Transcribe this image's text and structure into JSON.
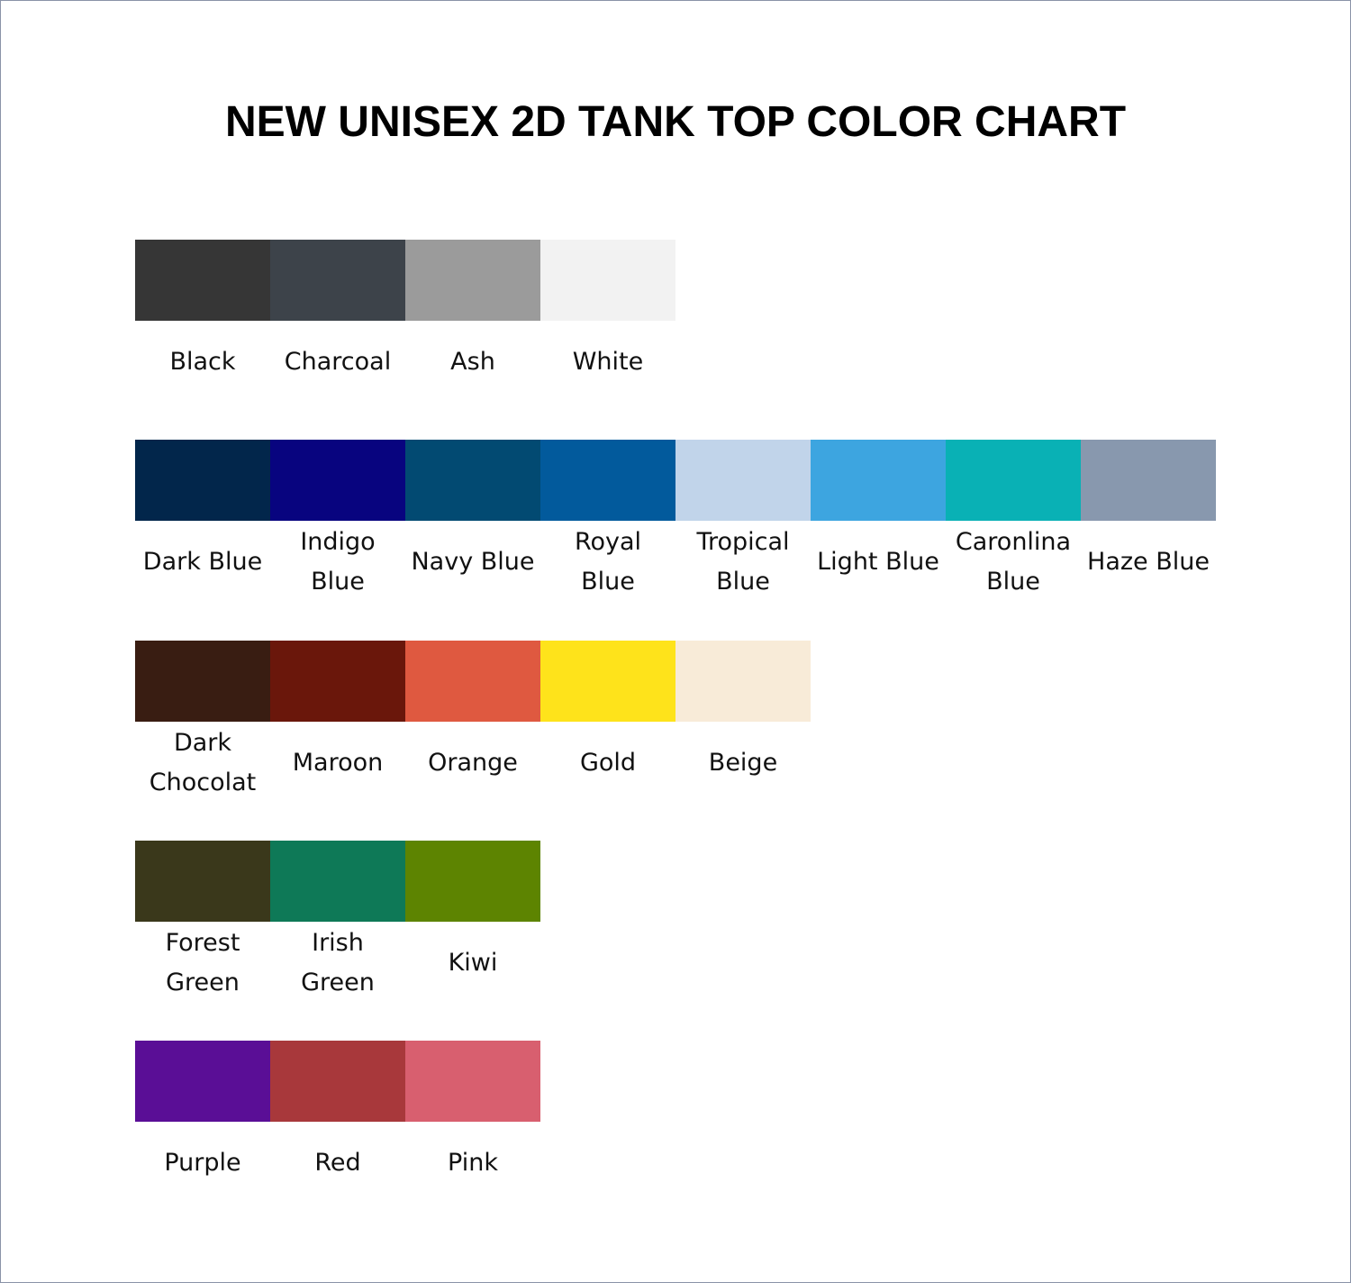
{
  "title": "NEW UNISEX 2D TANK TOP COLOR CHART",
  "rows": [
    [
      {
        "name": "Black",
        "color": "#363636"
      },
      {
        "name": "Charcoal",
        "color": "#3d434a"
      },
      {
        "name": "Ash",
        "color": "#9b9b9b"
      },
      {
        "name": "White",
        "color": "#f2f2f2"
      }
    ],
    [
      {
        "name": "Dark Blue",
        "color": "#02264b"
      },
      {
        "name": "Indigo\nBlue",
        "color": "#08047f"
      },
      {
        "name": "Navy Blue",
        "color": "#024a72"
      },
      {
        "name": "Royal\nBlue",
        "color": "#025a9c"
      },
      {
        "name": "Tropical\nBlue",
        "color": "#c1d4ea"
      },
      {
        "name": "Light Blue",
        "color": "#3da5e0"
      },
      {
        "name": "Caronlina\nBlue",
        "color": "#09b1b5"
      },
      {
        "name": "Haze Blue",
        "color": "#8898ae"
      }
    ],
    [
      {
        "name": "Dark\nChocolat",
        "color": "#391d12"
      },
      {
        "name": "Maroon",
        "color": "#6a170b"
      },
      {
        "name": "Orange",
        "color": "#df5940"
      },
      {
        "name": "Gold",
        "color": "#fee31b"
      },
      {
        "name": "Beige",
        "color": "#f8ebd8"
      }
    ],
    [
      {
        "name": "Forest\nGreen",
        "color": "#3a381b"
      },
      {
        "name": "Irish\nGreen",
        "color": "#0e7957"
      },
      {
        "name": "Kiwi",
        "color": "#5d8401"
      }
    ],
    [
      {
        "name": "Purple",
        "color": "#5a0e96"
      },
      {
        "name": "Red",
        "color": "#a8383b"
      },
      {
        "name": "Pink",
        "color": "#d85f6f"
      }
    ]
  ]
}
